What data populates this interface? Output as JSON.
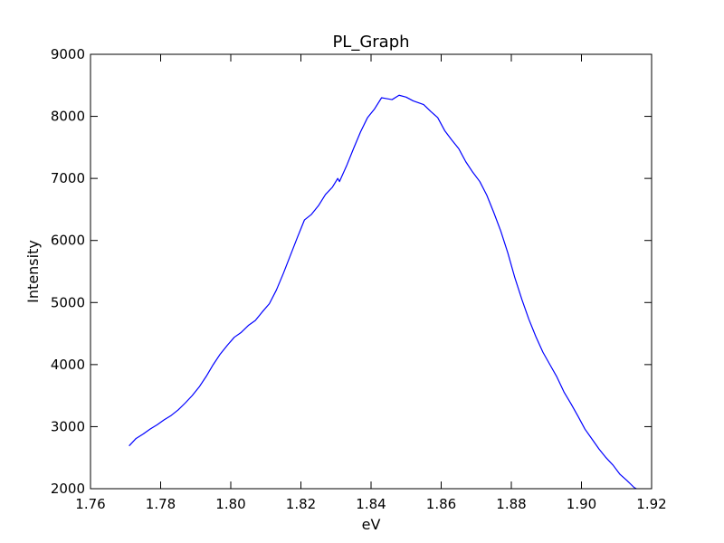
{
  "chart_data": {
    "type": "line",
    "title": "PL_Graph",
    "xlabel": "eV",
    "ylabel": "Intensity",
    "xlim": [
      1.76,
      1.92
    ],
    "ylim": [
      2000,
      9000
    ],
    "x_ticks": [
      "1.76",
      "1.78",
      "1.80",
      "1.82",
      "1.84",
      "1.86",
      "1.88",
      "1.90",
      "1.92"
    ],
    "y_ticks": [
      "2000",
      "3000",
      "4000",
      "5000",
      "6000",
      "7000",
      "8000",
      "9000"
    ],
    "grid": false,
    "legend": "none",
    "series": [
      {
        "color": "#0000ff",
        "x": [
          1.771,
          1.773,
          1.775,
          1.777,
          1.779,
          1.781,
          1.783,
          1.785,
          1.787,
          1.789,
          1.791,
          1.793,
          1.795,
          1.797,
          1.799,
          1.801,
          1.803,
          1.805,
          1.807,
          1.809,
          1.811,
          1.813,
          1.815,
          1.817,
          1.819,
          1.821,
          1.823,
          1.825,
          1.827,
          1.829,
          1.8305,
          1.831,
          1.833,
          1.835,
          1.837,
          1.839,
          1.841,
          1.843,
          1.844,
          1.846,
          1.848,
          1.85,
          1.852,
          1.853,
          1.855,
          1.857,
          1.859,
          1.861,
          1.863,
          1.865,
          1.867,
          1.869,
          1.871,
          1.873,
          1.875,
          1.877,
          1.879,
          1.881,
          1.883,
          1.885,
          1.887,
          1.889,
          1.891,
          1.893,
          1.895,
          1.897,
          1.899,
          1.901,
          1.903,
          1.905,
          1.907,
          1.909,
          1.911,
          1.913,
          1.915,
          1.916
        ],
        "y": [
          2690,
          2810,
          2880,
          2960,
          3030,
          3110,
          3180,
          3270,
          3380,
          3500,
          3640,
          3810,
          4000,
          4170,
          4310,
          4440,
          4520,
          4630,
          4710,
          4850,
          4980,
          5200,
          5470,
          5760,
          6050,
          6330,
          6420,
          6560,
          6740,
          6860,
          7000,
          6950,
          7200,
          7480,
          7750,
          7980,
          8120,
          8300,
          8290,
          8270,
          8340,
          8310,
          8250,
          8230,
          8190,
          8080,
          7980,
          7770,
          7620,
          7480,
          7270,
          7100,
          6950,
          6730,
          6450,
          6150,
          5800,
          5400,
          5050,
          4730,
          4450,
          4200,
          4000,
          3800,
          3560,
          3370,
          3170,
          2960,
          2800,
          2640,
          2500,
          2380,
          2230,
          2130,
          2020,
          1990
        ]
      }
    ]
  }
}
